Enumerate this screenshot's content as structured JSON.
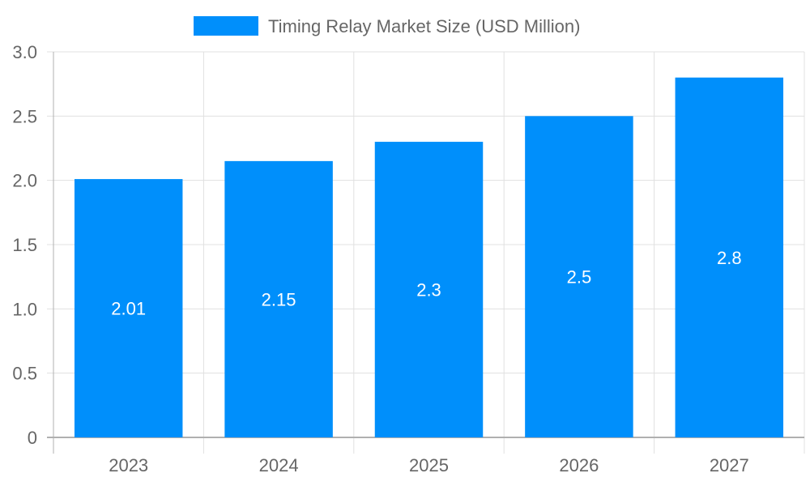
{
  "legend": {
    "label": "Timing Relay Market Size (USD Million)",
    "color": "#008ffb"
  },
  "chart_data": {
    "type": "bar",
    "title": "",
    "categories": [
      "2023",
      "2024",
      "2025",
      "2026",
      "2027"
    ],
    "series": [
      {
        "name": "Timing Relay Market Size (USD Million)",
        "values": [
          2.01,
          2.15,
          2.3,
          2.5,
          2.8
        ],
        "color": "#008ffb"
      }
    ],
    "data_labels": [
      "2.01",
      "2.15",
      "2.3",
      "2.5",
      "2.8"
    ],
    "xlabel": "",
    "ylabel": "",
    "ylim": [
      0,
      3.0
    ],
    "yticks": [
      "0",
      "0.5",
      "1.0",
      "1.5",
      "2.0",
      "2.5",
      "3.0"
    ],
    "grid": true,
    "legend_position": "top"
  }
}
